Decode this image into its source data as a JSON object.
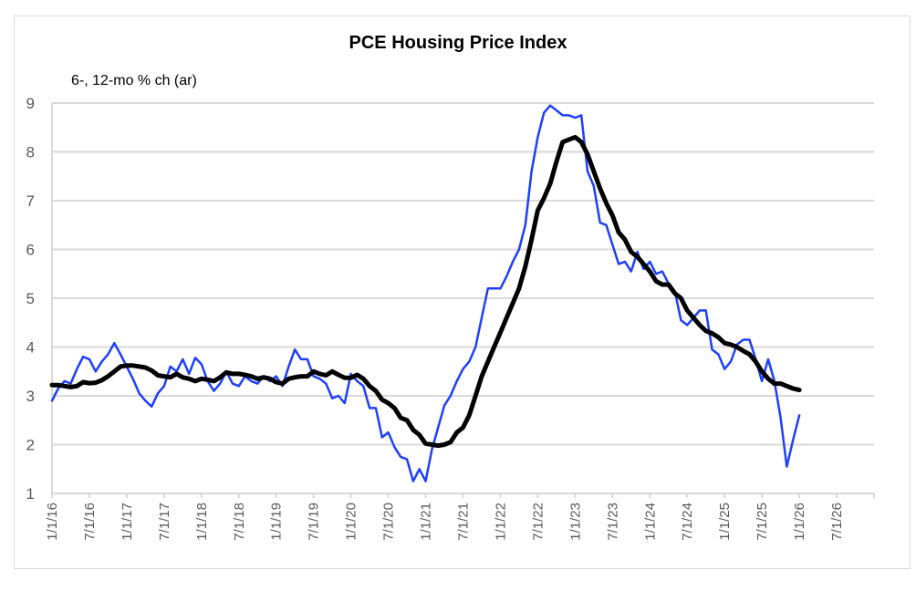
{
  "chart_data": {
    "type": "line",
    "title": "PCE Housing Price Index",
    "ylabel": "6-, 12-mo % ch (ar)",
    "xlabel": "",
    "ylim": [
      1,
      9
    ],
    "yticks": [
      "1",
      "2",
      "3",
      "4",
      "5",
      "6",
      "7",
      "8",
      "9"
    ],
    "xticks": [
      "1/1/16",
      "7/1/16",
      "1/1/17",
      "7/1/17",
      "1/1/18",
      "7/1/18",
      "1/1/19",
      "7/1/19",
      "1/1/20",
      "7/1/20",
      "1/1/21",
      "7/1/21",
      "1/1/22",
      "7/1/22",
      "1/1/23",
      "7/1/23",
      "1/1/24",
      "7/1/24",
      "1/1/25",
      "7/1/25",
      "1/1/26",
      "7/1/26"
    ],
    "x_start": "2016-01",
    "x_frequency": "monthly",
    "x_range_months": 132,
    "grid": true,
    "legend": "none",
    "series": [
      {
        "name": "6-mo % ch (ar)",
        "color": "#1f3fff",
        "values": [
          2.9,
          3.15,
          3.3,
          3.25,
          3.55,
          3.8,
          3.75,
          3.5,
          3.7,
          3.85,
          4.08,
          3.85,
          3.6,
          3.35,
          3.05,
          2.9,
          2.78,
          3.05,
          3.2,
          3.6,
          3.5,
          3.75,
          3.45,
          3.78,
          3.65,
          3.3,
          3.1,
          3.25,
          3.5,
          3.25,
          3.2,
          3.4,
          3.3,
          3.25,
          3.4,
          3.3,
          3.4,
          3.2,
          3.6,
          3.95,
          3.75,
          3.75,
          3.4,
          3.35,
          3.25,
          2.95,
          3.0,
          2.85,
          3.45,
          3.3,
          3.2,
          2.75,
          2.75,
          2.15,
          2.25,
          1.95,
          1.75,
          1.7,
          1.25,
          1.5,
          1.25,
          1.9,
          2.35,
          2.8,
          3.0,
          3.3,
          3.55,
          3.7,
          4.0,
          4.6,
          5.2,
          5.2,
          5.2,
          5.45,
          5.75,
          6.0,
          6.5,
          7.6,
          8.3,
          8.8,
          8.95,
          8.85,
          8.75,
          8.75,
          8.7,
          8.75,
          7.6,
          7.3,
          6.55,
          6.5,
          6.1,
          5.7,
          5.75,
          5.55,
          5.95,
          5.6,
          5.75,
          5.5,
          5.55,
          5.3,
          5.15,
          4.55,
          4.45,
          4.6,
          4.75,
          4.75,
          3.95,
          3.85,
          3.55,
          3.7,
          4.05,
          4.15,
          4.15,
          3.75,
          3.3,
          3.75,
          3.3,
          2.55,
          1.55,
          2.1,
          2.6
        ]
      },
      {
        "name": "12-mo % ch",
        "color": "#000000",
        "values": [
          3.22,
          3.22,
          3.2,
          3.18,
          3.2,
          3.28,
          3.26,
          3.27,
          3.32,
          3.4,
          3.5,
          3.6,
          3.62,
          3.62,
          3.6,
          3.58,
          3.52,
          3.42,
          3.4,
          3.38,
          3.45,
          3.38,
          3.35,
          3.3,
          3.35,
          3.33,
          3.3,
          3.38,
          3.48,
          3.45,
          3.45,
          3.43,
          3.4,
          3.35,
          3.38,
          3.35,
          3.28,
          3.25,
          3.35,
          3.38,
          3.4,
          3.4,
          3.5,
          3.45,
          3.42,
          3.5,
          3.43,
          3.37,
          3.37,
          3.43,
          3.35,
          3.2,
          3.1,
          2.92,
          2.85,
          2.75,
          2.55,
          2.5,
          2.3,
          2.2,
          2.02,
          2.0,
          1.98,
          2.0,
          2.05,
          2.25,
          2.35,
          2.6,
          3.0,
          3.4,
          3.7,
          4.0,
          4.3,
          4.6,
          4.9,
          5.2,
          5.65,
          6.2,
          6.8,
          7.05,
          7.35,
          7.8,
          8.2,
          8.25,
          8.3,
          8.2,
          7.95,
          7.6,
          7.25,
          6.95,
          6.7,
          6.35,
          6.2,
          5.95,
          5.85,
          5.7,
          5.55,
          5.35,
          5.28,
          5.28,
          5.1,
          5.0,
          4.75,
          4.6,
          4.45,
          4.33,
          4.28,
          4.2,
          4.08,
          4.05,
          4.0,
          3.92,
          3.85,
          3.7,
          3.5,
          3.35,
          3.25,
          3.25,
          3.2,
          3.15,
          3.12
        ]
      }
    ]
  }
}
